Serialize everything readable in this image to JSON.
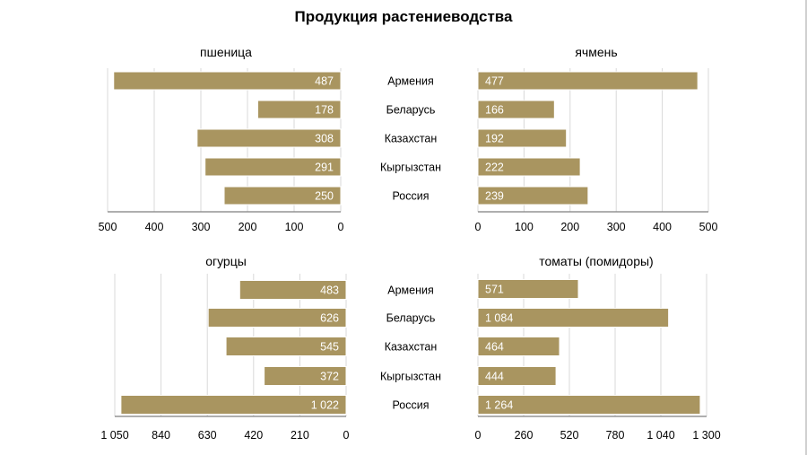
{
  "title": "Продукция растениеводства",
  "countries": [
    "Армения",
    "Беларусь",
    "Казахстан",
    "Кыргызстан",
    "Россия"
  ],
  "colors": {
    "bar": "#a99560",
    "grid": "#d9d9d9",
    "axis": "#7f7f7f"
  },
  "chart_data": [
    {
      "type": "bar",
      "orientation": "horizontal",
      "direction": "reversed",
      "title": "пшеница",
      "categories": [
        "Армения",
        "Беларусь",
        "Казахстан",
        "Кыргызстан",
        "Россия"
      ],
      "values": [
        487,
        178,
        308,
        291,
        250
      ],
      "value_labels": [
        "487",
        "178",
        "308",
        "291",
        "250"
      ],
      "xlim": [
        0,
        500
      ],
      "ticks": [
        500,
        400,
        300,
        200,
        100,
        0
      ],
      "tick_labels": [
        "500",
        "400",
        "300",
        "200",
        "100",
        "0"
      ]
    },
    {
      "type": "bar",
      "orientation": "horizontal",
      "direction": "normal",
      "title": "ячмень",
      "categories": [
        "Армения",
        "Беларусь",
        "Казахстан",
        "Кыргызстан",
        "Россия"
      ],
      "values": [
        477,
        166,
        192,
        222,
        239
      ],
      "value_labels": [
        "477",
        "166",
        "192",
        "222",
        "239"
      ],
      "xlim": [
        0,
        500
      ],
      "ticks": [
        0,
        100,
        200,
        300,
        400,
        500
      ],
      "tick_labels": [
        "0",
        "100",
        "200",
        "300",
        "400",
        "500"
      ]
    },
    {
      "type": "bar",
      "orientation": "horizontal",
      "direction": "reversed",
      "title": "огурцы",
      "categories": [
        "Армения",
        "Беларусь",
        "Казахстан",
        "Кыргызстан",
        "Россия"
      ],
      "values": [
        483,
        626,
        545,
        372,
        1022
      ],
      "value_labels": [
        "483",
        "626",
        "545",
        "372",
        "1 022"
      ],
      "xlim": [
        0,
        1050
      ],
      "ticks": [
        1050,
        840,
        630,
        420,
        210,
        0
      ],
      "tick_labels": [
        "1 050",
        "840",
        "630",
        "420",
        "210",
        "0"
      ]
    },
    {
      "type": "bar",
      "orientation": "horizontal",
      "direction": "normal",
      "title": "томаты (помидоры)",
      "categories": [
        "Армения",
        "Беларусь",
        "Казахстан",
        "Кыргызстан",
        "Россия"
      ],
      "values": [
        571,
        1084,
        464,
        444,
        1264
      ],
      "value_labels": [
        "571",
        "1 084",
        "464",
        "444",
        "1 264"
      ],
      "xlim": [
        0,
        1300
      ],
      "ticks": [
        0,
        260,
        520,
        780,
        1040,
        1300
      ],
      "tick_labels": [
        "0",
        "260",
        "520",
        "780",
        "1 040",
        "1 300"
      ]
    }
  ]
}
